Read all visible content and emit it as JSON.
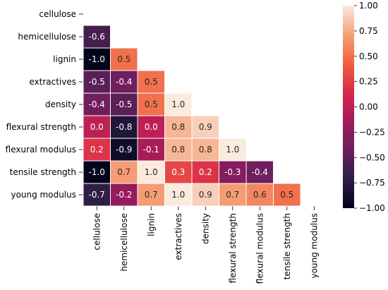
{
  "chart_data": {
    "type": "heatmap",
    "title": "",
    "xlabel": "",
    "ylabel": "",
    "mask": "upper-triangle",
    "colormap": "rocket",
    "colormap_stops": [
      "#03051a",
      "#2c1d45",
      "#6b1f5e",
      "#a11a5b",
      "#d8284c",
      "#f0603e",
      "#f59f78",
      "#faebdd"
    ],
    "cell_border_color": "#ffffff",
    "vmin": -1.0,
    "vmax": 1.0,
    "row_labels": [
      "cellulose",
      "hemicellulose",
      "lignin",
      "extractives",
      "density",
      "flexural strength",
      "flexural modulus",
      "tensile strength",
      "young modulus"
    ],
    "col_labels": [
      "cellulose",
      "hemicellulose",
      "lignin",
      "extractives",
      "density",
      "flexural strength",
      "flexural modulus",
      "tensile strength",
      "young modulus"
    ],
    "cells": [
      {
        "row": 1,
        "col": 0,
        "value": -0.6,
        "label": "-0.6"
      },
      {
        "row": 2,
        "col": 0,
        "value": -1.0,
        "label": "-1.0"
      },
      {
        "row": 2,
        "col": 1,
        "value": 0.5,
        "label": "0.5"
      },
      {
        "row": 3,
        "col": 0,
        "value": -0.5,
        "label": "-0.5"
      },
      {
        "row": 3,
        "col": 1,
        "value": -0.4,
        "label": "-0.4"
      },
      {
        "row": 3,
        "col": 2,
        "value": 0.5,
        "label": "0.5"
      },
      {
        "row": 4,
        "col": 0,
        "value": -0.4,
        "label": "-0.4"
      },
      {
        "row": 4,
        "col": 1,
        "value": -0.5,
        "label": "-0.5"
      },
      {
        "row": 4,
        "col": 2,
        "value": 0.5,
        "label": "0.5"
      },
      {
        "row": 4,
        "col": 3,
        "value": 1.0,
        "label": "1.0"
      },
      {
        "row": 5,
        "col": 0,
        "value": 0.0,
        "label": "0.0"
      },
      {
        "row": 5,
        "col": 1,
        "value": -0.8,
        "label": "-0.8"
      },
      {
        "row": 5,
        "col": 2,
        "value": 0.0,
        "label": "0.0"
      },
      {
        "row": 5,
        "col": 3,
        "value": 0.8,
        "label": "0.8"
      },
      {
        "row": 5,
        "col": 4,
        "value": 0.9,
        "label": "0.9"
      },
      {
        "row": 6,
        "col": 0,
        "value": 0.2,
        "label": "0.2"
      },
      {
        "row": 6,
        "col": 1,
        "value": -0.9,
        "label": "-0.9"
      },
      {
        "row": 6,
        "col": 2,
        "value": -0.1,
        "label": "-0.1"
      },
      {
        "row": 6,
        "col": 3,
        "value": 0.8,
        "label": "0.8"
      },
      {
        "row": 6,
        "col": 4,
        "value": 0.8,
        "label": "0.8"
      },
      {
        "row": 6,
        "col": 5,
        "value": 1.0,
        "label": "1.0"
      },
      {
        "row": 7,
        "col": 0,
        "value": -1.0,
        "label": "-1.0"
      },
      {
        "row": 7,
        "col": 1,
        "value": 0.7,
        "label": "0.7"
      },
      {
        "row": 7,
        "col": 2,
        "value": 1.0,
        "label": "1.0"
      },
      {
        "row": 7,
        "col": 3,
        "value": 0.3,
        "label": "0.3"
      },
      {
        "row": 7,
        "col": 4,
        "value": 0.2,
        "label": "0.2"
      },
      {
        "row": 7,
        "col": 5,
        "value": -0.3,
        "label": "-0.3"
      },
      {
        "row": 7,
        "col": 6,
        "value": -0.4,
        "label": "-0.4"
      },
      {
        "row": 8,
        "col": 0,
        "value": -0.7,
        "label": "-0.7"
      },
      {
        "row": 8,
        "col": 1,
        "value": -0.2,
        "label": "-0.2"
      },
      {
        "row": 8,
        "col": 2,
        "value": 0.7,
        "label": "0.7"
      },
      {
        "row": 8,
        "col": 3,
        "value": 1.0,
        "label": "1.0"
      },
      {
        "row": 8,
        "col": 4,
        "value": 0.9,
        "label": "0.9"
      },
      {
        "row": 8,
        "col": 5,
        "value": 0.7,
        "label": "0.7"
      },
      {
        "row": 8,
        "col": 6,
        "value": 0.6,
        "label": "0.6"
      },
      {
        "row": 8,
        "col": 7,
        "value": 0.5,
        "label": "0.5"
      }
    ],
    "colorbar": {
      "placement": "right",
      "ticks": [
        1.0,
        0.75,
        0.5,
        0.25,
        0.0,
        -0.25,
        -0.5,
        -0.75,
        -1.0
      ],
      "tick_labels": [
        "1.00",
        "0.75",
        "0.50",
        "0.25",
        "0.00",
        "−0.25",
        "−0.50",
        "−0.75",
        "−1.00"
      ]
    }
  }
}
